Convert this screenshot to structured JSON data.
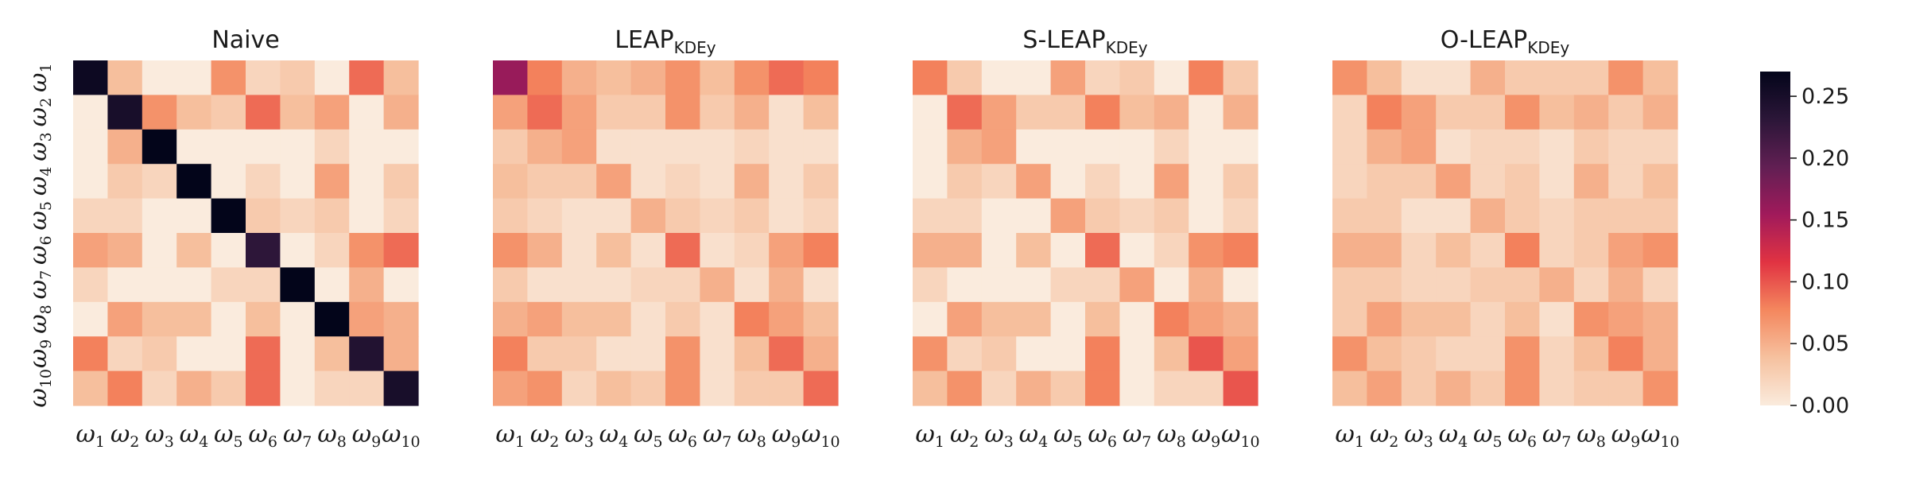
{
  "chart_data": [
    {
      "type": "heatmap",
      "title": "Naive",
      "xlabel": "",
      "ylabel": "",
      "x_ticks": [
        {
          "base": "ω",
          "sub": "1"
        },
        {
          "base": "ω",
          "sub": "2"
        },
        {
          "base": "ω",
          "sub": "3"
        },
        {
          "base": "ω",
          "sub": "4"
        },
        {
          "base": "ω",
          "sub": "5"
        },
        {
          "base": "ω",
          "sub": "6"
        },
        {
          "base": "ω",
          "sub": "7"
        },
        {
          "base": "ω",
          "sub": "8"
        },
        {
          "base": "ω",
          "sub": "9"
        },
        {
          "base": "ω",
          "sub": "10"
        }
      ],
      "y_ticks": [
        {
          "base": "ω",
          "sub": "1"
        },
        {
          "base": "ω",
          "sub": "2"
        },
        {
          "base": "ω",
          "sub": "3"
        },
        {
          "base": "ω",
          "sub": "4"
        },
        {
          "base": "ω",
          "sub": "5"
        },
        {
          "base": "ω",
          "sub": "6"
        },
        {
          "base": "ω",
          "sub": "7"
        },
        {
          "base": "ω",
          "sub": "8"
        },
        {
          "base": "ω",
          "sub": "9"
        },
        {
          "base": "ω",
          "sub": "10"
        }
      ],
      "values": [
        [
          0.26,
          0.04,
          0.0,
          0.0,
          0.07,
          0.02,
          0.03,
          0.0,
          0.09,
          0.04
        ],
        [
          0.0,
          0.25,
          0.07,
          0.04,
          0.03,
          0.09,
          0.04,
          0.06,
          0.0,
          0.05
        ],
        [
          0.0,
          0.05,
          0.27,
          0.0,
          0.0,
          0.0,
          0.0,
          0.02,
          0.0,
          0.0
        ],
        [
          0.0,
          0.03,
          0.02,
          0.27,
          0.0,
          0.02,
          0.0,
          0.06,
          0.0,
          0.03
        ],
        [
          0.02,
          0.02,
          0.0,
          0.0,
          0.27,
          0.03,
          0.02,
          0.03,
          0.0,
          0.02
        ],
        [
          0.06,
          0.05,
          0.0,
          0.04,
          0.0,
          0.23,
          0.0,
          0.02,
          0.07,
          0.09
        ],
        [
          0.02,
          0.0,
          0.0,
          0.0,
          0.02,
          0.02,
          0.27,
          0.0,
          0.05,
          0.0
        ],
        [
          0.0,
          0.06,
          0.04,
          0.04,
          0.0,
          0.04,
          0.0,
          0.27,
          0.06,
          0.05
        ],
        [
          0.08,
          0.02,
          0.03,
          0.0,
          0.0,
          0.09,
          0.0,
          0.04,
          0.24,
          0.05
        ],
        [
          0.04,
          0.08,
          0.02,
          0.05,
          0.03,
          0.09,
          0.0,
          0.02,
          0.02,
          0.25
        ]
      ]
    },
    {
      "type": "heatmap",
      "title": "LEAP",
      "title_sub": "KDEy",
      "xlabel": "",
      "ylabel": "",
      "x_ticks": [
        {
          "base": "ω",
          "sub": "1"
        },
        {
          "base": "ω",
          "sub": "2"
        },
        {
          "base": "ω",
          "sub": "3"
        },
        {
          "base": "ω",
          "sub": "4"
        },
        {
          "base": "ω",
          "sub": "5"
        },
        {
          "base": "ω",
          "sub": "6"
        },
        {
          "base": "ω",
          "sub": "7"
        },
        {
          "base": "ω",
          "sub": "8"
        },
        {
          "base": "ω",
          "sub": "9"
        },
        {
          "base": "ω",
          "sub": "10"
        }
      ],
      "values": [
        [
          0.16,
          0.08,
          0.05,
          0.04,
          0.05,
          0.07,
          0.04,
          0.07,
          0.09,
          0.08
        ],
        [
          0.06,
          0.09,
          0.06,
          0.03,
          0.03,
          0.07,
          0.03,
          0.05,
          0.01,
          0.04
        ],
        [
          0.03,
          0.05,
          0.06,
          0.01,
          0.01,
          0.01,
          0.01,
          0.02,
          0.01,
          0.01
        ],
        [
          0.04,
          0.03,
          0.03,
          0.06,
          0.01,
          0.02,
          0.01,
          0.05,
          0.01,
          0.03
        ],
        [
          0.03,
          0.02,
          0.01,
          0.01,
          0.05,
          0.03,
          0.02,
          0.03,
          0.01,
          0.02
        ],
        [
          0.07,
          0.05,
          0.01,
          0.04,
          0.01,
          0.09,
          0.01,
          0.02,
          0.06,
          0.08
        ],
        [
          0.03,
          0.01,
          0.01,
          0.01,
          0.02,
          0.02,
          0.05,
          0.01,
          0.05,
          0.01
        ],
        [
          0.05,
          0.06,
          0.04,
          0.04,
          0.01,
          0.03,
          0.01,
          0.08,
          0.06,
          0.04
        ],
        [
          0.08,
          0.03,
          0.03,
          0.01,
          0.01,
          0.07,
          0.01,
          0.04,
          0.09,
          0.05
        ],
        [
          0.06,
          0.07,
          0.02,
          0.04,
          0.03,
          0.07,
          0.01,
          0.03,
          0.03,
          0.09
        ]
      ]
    },
    {
      "type": "heatmap",
      "title": "S-LEAP",
      "title_sub": "KDEy",
      "xlabel": "",
      "ylabel": "",
      "x_ticks": [
        {
          "base": "ω",
          "sub": "1"
        },
        {
          "base": "ω",
          "sub": "2"
        },
        {
          "base": "ω",
          "sub": "3"
        },
        {
          "base": "ω",
          "sub": "4"
        },
        {
          "base": "ω",
          "sub": "5"
        },
        {
          "base": "ω",
          "sub": "6"
        },
        {
          "base": "ω",
          "sub": "7"
        },
        {
          "base": "ω",
          "sub": "8"
        },
        {
          "base": "ω",
          "sub": "9"
        },
        {
          "base": "ω",
          "sub": "10"
        }
      ],
      "values": [
        [
          0.08,
          0.03,
          0.0,
          0.0,
          0.06,
          0.02,
          0.03,
          0.0,
          0.08,
          0.03
        ],
        [
          0.0,
          0.09,
          0.06,
          0.03,
          0.03,
          0.08,
          0.04,
          0.05,
          0.0,
          0.05
        ],
        [
          0.0,
          0.05,
          0.06,
          0.0,
          0.0,
          0.0,
          0.0,
          0.02,
          0.0,
          0.0
        ],
        [
          0.0,
          0.03,
          0.02,
          0.06,
          0.0,
          0.02,
          0.0,
          0.06,
          0.0,
          0.03
        ],
        [
          0.02,
          0.02,
          0.0,
          0.0,
          0.06,
          0.03,
          0.02,
          0.03,
          0.0,
          0.02
        ],
        [
          0.05,
          0.05,
          0.0,
          0.04,
          0.0,
          0.09,
          0.0,
          0.02,
          0.07,
          0.08
        ],
        [
          0.02,
          0.0,
          0.0,
          0.0,
          0.02,
          0.02,
          0.06,
          0.0,
          0.05,
          0.0
        ],
        [
          0.0,
          0.06,
          0.04,
          0.04,
          0.0,
          0.04,
          0.0,
          0.08,
          0.06,
          0.05
        ],
        [
          0.07,
          0.02,
          0.03,
          0.0,
          0.0,
          0.08,
          0.0,
          0.04,
          0.1,
          0.06
        ],
        [
          0.04,
          0.07,
          0.02,
          0.05,
          0.03,
          0.08,
          0.0,
          0.02,
          0.02,
          0.1
        ]
      ]
    },
    {
      "type": "heatmap",
      "title": "O-LEAP",
      "title_sub": "KDEy",
      "xlabel": "",
      "ylabel": "",
      "x_ticks": [
        {
          "base": "ω",
          "sub": "1"
        },
        {
          "base": "ω",
          "sub": "2"
        },
        {
          "base": "ω",
          "sub": "3"
        },
        {
          "base": "ω",
          "sub": "4"
        },
        {
          "base": "ω",
          "sub": "5"
        },
        {
          "base": "ω",
          "sub": "6"
        },
        {
          "base": "ω",
          "sub": "7"
        },
        {
          "base": "ω",
          "sub": "8"
        },
        {
          "base": "ω",
          "sub": "9"
        },
        {
          "base": "ω",
          "sub": "10"
        }
      ],
      "values": [
        [
          0.07,
          0.04,
          0.01,
          0.01,
          0.05,
          0.03,
          0.03,
          0.03,
          0.07,
          0.04
        ],
        [
          0.02,
          0.08,
          0.06,
          0.03,
          0.03,
          0.07,
          0.04,
          0.05,
          0.03,
          0.05
        ],
        [
          0.02,
          0.05,
          0.06,
          0.01,
          0.02,
          0.02,
          0.01,
          0.03,
          0.02,
          0.02
        ],
        [
          0.02,
          0.03,
          0.03,
          0.06,
          0.02,
          0.03,
          0.01,
          0.05,
          0.02,
          0.04
        ],
        [
          0.03,
          0.03,
          0.01,
          0.01,
          0.05,
          0.03,
          0.02,
          0.03,
          0.03,
          0.03
        ],
        [
          0.05,
          0.05,
          0.02,
          0.04,
          0.02,
          0.08,
          0.02,
          0.03,
          0.06,
          0.07
        ],
        [
          0.03,
          0.03,
          0.02,
          0.02,
          0.03,
          0.03,
          0.05,
          0.02,
          0.05,
          0.02
        ],
        [
          0.03,
          0.06,
          0.04,
          0.04,
          0.02,
          0.04,
          0.01,
          0.07,
          0.06,
          0.05
        ],
        [
          0.07,
          0.04,
          0.03,
          0.02,
          0.02,
          0.07,
          0.02,
          0.04,
          0.08,
          0.05
        ],
        [
          0.04,
          0.06,
          0.03,
          0.05,
          0.03,
          0.07,
          0.02,
          0.03,
          0.03,
          0.07
        ]
      ]
    }
  ],
  "colorbar": {
    "colormap": "rocket_r",
    "range": [
      0,
      0.27
    ],
    "ticks": [
      0.0,
      0.05,
      0.1,
      0.15,
      0.2,
      0.25
    ],
    "tick_labels": [
      "0.00",
      "0.05",
      "0.10",
      "0.15",
      "0.20",
      "0.25"
    ],
    "stops": [
      "#faebdd",
      "#f6c19f",
      "#f4875e",
      "#e13342",
      "#a11a5b",
      "#611f53",
      "#2b1638",
      "#03051a"
    ]
  }
}
